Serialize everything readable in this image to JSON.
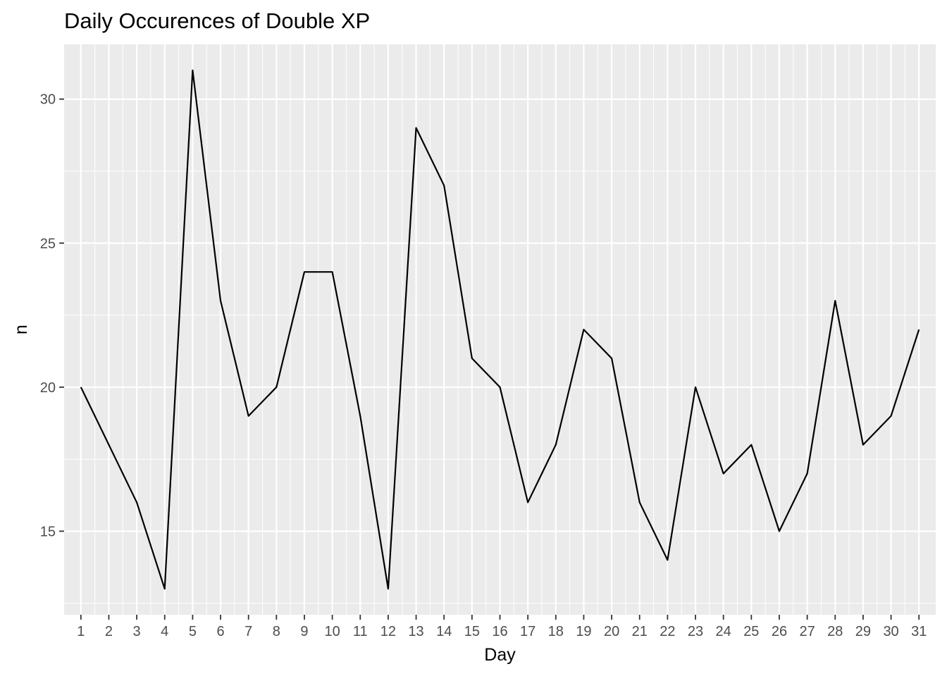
{
  "chart_data": {
    "type": "line",
    "title": "Daily Occurences of Double XP",
    "xlabel": "Day",
    "ylabel": "n",
    "x": [
      "1",
      "2",
      "3",
      "4",
      "5",
      "6",
      "7",
      "8",
      "9",
      "10",
      "11",
      "12",
      "13",
      "14",
      "15",
      "16",
      "17",
      "18",
      "19",
      "20",
      "21",
      "22",
      "23",
      "24",
      "25",
      "26",
      "27",
      "28",
      "29",
      "30",
      "31"
    ],
    "series": [
      {
        "values": [
          20,
          18,
          16,
          13,
          31,
          23,
          19,
          20,
          24,
          24,
          19,
          13,
          29,
          27,
          21,
          20,
          16,
          18,
          22,
          21,
          16,
          14,
          20,
          17,
          18,
          15,
          17,
          23,
          18,
          19,
          22
        ]
      }
    ],
    "yticks": [
      15,
      20,
      25,
      30
    ],
    "ylim": [
      12.1,
      31.9
    ],
    "grid": true,
    "colors": {
      "panel": "#ebebeb",
      "grid": "#ffffff",
      "line": "#000000",
      "tick_text": "#4d4d4d"
    }
  }
}
